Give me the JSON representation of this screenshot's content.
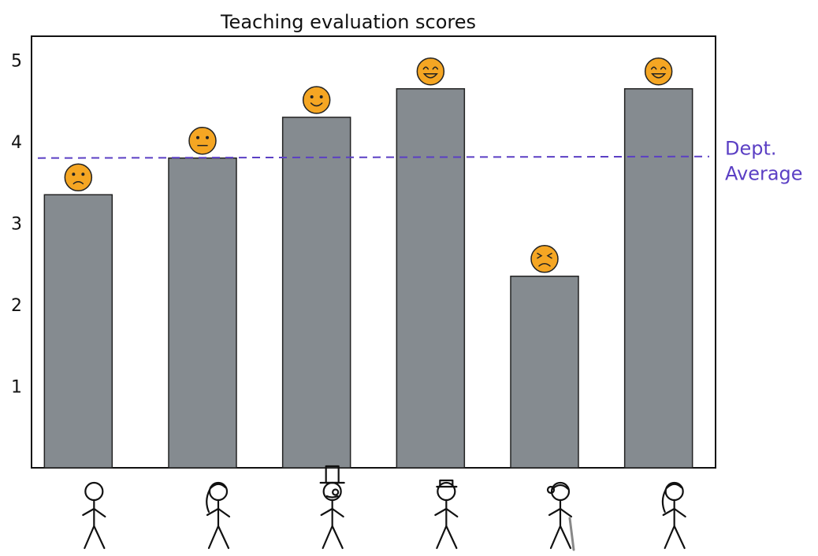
{
  "chart_data": {
    "type": "bar",
    "title": "Teaching evaluation scores",
    "xlabel": "",
    "ylabel": "",
    "categories": [
      "",
      "",
      "",
      "",
      "",
      ""
    ],
    "values": [
      3.35,
      3.8,
      4.3,
      4.65,
      2.35,
      4.65
    ],
    "emoji": [
      "sad-face-icon",
      "neutral-face-icon",
      "smile-face-icon",
      "grin-face-icon",
      "distressed-face-icon",
      "grin-face-icon"
    ],
    "person_icons": [
      "stick-figure-plain-icon",
      "stick-figure-ponytail-icon",
      "stick-figure-top-hat-monocle-icon",
      "stick-figure-flat-cap-icon",
      "stick-figure-elder-cane-icon",
      "stick-figure-ponytail-icon"
    ],
    "reference_line": {
      "label_lines": [
        "Dept.",
        "Average"
      ],
      "value": 3.8,
      "color": "#5b3fc4"
    },
    "ylim": [
      0,
      5.4
    ],
    "yticks": [
      1,
      2,
      3,
      4,
      5
    ],
    "bar_color": "#858b90",
    "emoji_color": "#f5a623",
    "grid": false,
    "legend": "none"
  }
}
